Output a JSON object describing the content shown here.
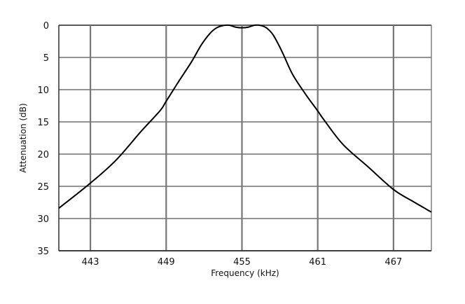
{
  "chart_data": {
    "type": "line",
    "title": "",
    "xlabel": "Frequency (kHz)",
    "ylabel": "Attenuation (dB)",
    "xlim": [
      440.5,
      470.0
    ],
    "ylim": [
      0,
      35
    ],
    "y_inverted": true,
    "grid": true,
    "x_ticks": [
      443,
      449,
      455,
      461,
      467
    ],
    "y_ticks": [
      0,
      5,
      10,
      15,
      20,
      25,
      30,
      35
    ],
    "x_tick_labels": [
      "443",
      "449",
      "455",
      "461",
      "467"
    ],
    "y_tick_labels": [
      "0",
      "5",
      "10",
      "15",
      "20",
      "25",
      "30",
      "35"
    ],
    "series": [
      {
        "color": "#000000",
        "x": [
          440.5,
          443,
          445,
          447,
          448.5,
          449,
          450,
          451,
          451.8,
          452.5,
          453,
          453.5,
          454.0,
          454.5,
          455.0,
          455.5,
          456.0,
          456.5,
          457.0,
          457.5,
          458.2,
          459,
          460,
          461,
          461.5,
          463,
          465,
          467,
          468.5,
          470.0
        ],
        "y": [
          28.4,
          24.5,
          21.0,
          16.5,
          13.3,
          11.8,
          8.7,
          5.7,
          3.0,
          1.2,
          0.4,
          0.05,
          0.0,
          0.3,
          0.4,
          0.3,
          0.0,
          0.05,
          0.5,
          1.6,
          4.2,
          7.6,
          10.6,
          13.3,
          14.7,
          18.5,
          22.0,
          25.5,
          27.3,
          29.0
        ]
      }
    ]
  }
}
